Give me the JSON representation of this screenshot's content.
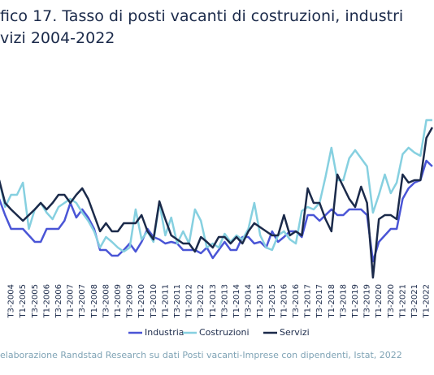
{
  "chart_data": {
    "type": "line",
    "title_lines": [
      "fico 17. Tasso di posti vacanti di costruzioni, industri",
      "vizi 2004-2022"
    ],
    "source": "elaborazione Randstad Research su dati Posti vacanti-Imprese con dipendenti, Istat, 2022",
    "categories": [
      null,
      null,
      "T3-2004",
      null,
      "T1-2005",
      null,
      "T3-2005",
      null,
      "T1-2006",
      null,
      "T3-2006",
      null,
      "T1-2007",
      null,
      "T3-2007",
      null,
      "T1-2008",
      null,
      "T3-2008",
      null,
      "T1-2009",
      null,
      "T3-2009",
      null,
      "T1-2010",
      null,
      "T3-2010",
      null,
      "T1-2011",
      null,
      "T3-2011",
      null,
      "T1-2012",
      null,
      "T3-2012",
      null,
      "T1-2013",
      null,
      "T3-2013",
      null,
      "T1-2014",
      null,
      "T3-2014",
      null,
      "T1-2015",
      null,
      "T3-2015",
      null,
      "T1-2016",
      null,
      "T3-2016",
      null,
      "T1-2017",
      null,
      "T3-2017",
      null,
      "T1-2018",
      null,
      "T3-2018",
      null,
      "T1-2019",
      null,
      "T3-2019",
      null,
      "T1-2020",
      null,
      "T3-2020",
      null,
      "T1-2021",
      null,
      "T3-2021",
      null,
      "T1-2022",
      null
    ],
    "ylim": [
      0,
      2.25
    ],
    "series": [
      {
        "name": "Industria",
        "color": "#4a55d6",
        "values": [
          1.0,
          0.8,
          0.63,
          0.63,
          0.63,
          0.55,
          0.47,
          0.47,
          0.63,
          0.63,
          0.63,
          0.73,
          0.95,
          0.77,
          0.87,
          0.77,
          0.63,
          0.37,
          0.37,
          0.3,
          0.3,
          0.37,
          0.45,
          0.35,
          0.47,
          0.63,
          0.53,
          0.5,
          0.45,
          0.47,
          0.45,
          0.37,
          0.37,
          0.37,
          0.33,
          0.4,
          0.27,
          0.37,
          0.47,
          0.37,
          0.37,
          0.53,
          0.53,
          0.45,
          0.47,
          0.4,
          0.6,
          0.47,
          0.53,
          0.6,
          0.6,
          0.53,
          0.8,
          0.8,
          0.73,
          0.8,
          0.87,
          0.8,
          0.8,
          0.87,
          0.87,
          0.87,
          0.8,
          0.23,
          0.47,
          0.55,
          0.63,
          0.63,
          1.0,
          1.13,
          1.2,
          1.23,
          1.47,
          1.4
        ]
      },
      {
        "name": "Costruzioni",
        "color": "#86d0e0",
        "values": [
          1.23,
          0.9,
          1.05,
          1.05,
          1.2,
          0.63,
          0.87,
          0.95,
          0.83,
          0.75,
          0.9,
          0.95,
          1.0,
          0.95,
          0.83,
          0.73,
          0.6,
          0.4,
          0.53,
          0.47,
          0.4,
          0.35,
          0.4,
          0.87,
          0.5,
          0.6,
          0.47,
          0.95,
          0.55,
          0.77,
          0.45,
          0.6,
          0.45,
          0.87,
          0.73,
          0.4,
          0.45,
          0.4,
          0.57,
          0.47,
          0.55,
          0.5,
          0.63,
          0.95,
          0.55,
          0.4,
          0.37,
          0.55,
          0.6,
          0.5,
          0.45,
          0.85,
          0.9,
          0.87,
          0.95,
          1.27,
          1.63,
          1.23,
          1.23,
          1.5,
          1.6,
          1.5,
          1.4,
          0.83,
          1.05,
          1.3,
          1.07,
          1.2,
          1.55,
          1.63,
          1.57,
          1.53,
          1.97,
          1.97
        ]
      },
      {
        "name": "Servizi",
        "color": "#1b2a4a",
        "values": [
          1.23,
          0.95,
          0.87,
          0.8,
          0.73,
          0.8,
          0.87,
          0.95,
          0.87,
          0.95,
          1.05,
          1.05,
          0.95,
          1.05,
          1.13,
          1.0,
          0.8,
          0.6,
          0.7,
          0.6,
          0.6,
          0.7,
          0.7,
          0.7,
          0.8,
          0.6,
          0.5,
          0.97,
          0.75,
          0.55,
          0.5,
          0.45,
          0.45,
          0.35,
          0.53,
          0.47,
          0.4,
          0.53,
          0.53,
          0.45,
          0.53,
          0.45,
          0.6,
          0.7,
          0.65,
          0.6,
          0.55,
          0.55,
          0.8,
          0.55,
          0.6,
          0.55,
          1.13,
          0.95,
          0.95,
          0.75,
          0.6,
          1.3,
          1.15,
          1.0,
          0.9,
          1.15,
          0.95,
          0.03,
          0.75,
          0.8,
          0.8,
          0.75,
          1.3,
          1.2,
          1.23,
          1.23,
          1.75,
          1.88
        ]
      }
    ]
  }
}
